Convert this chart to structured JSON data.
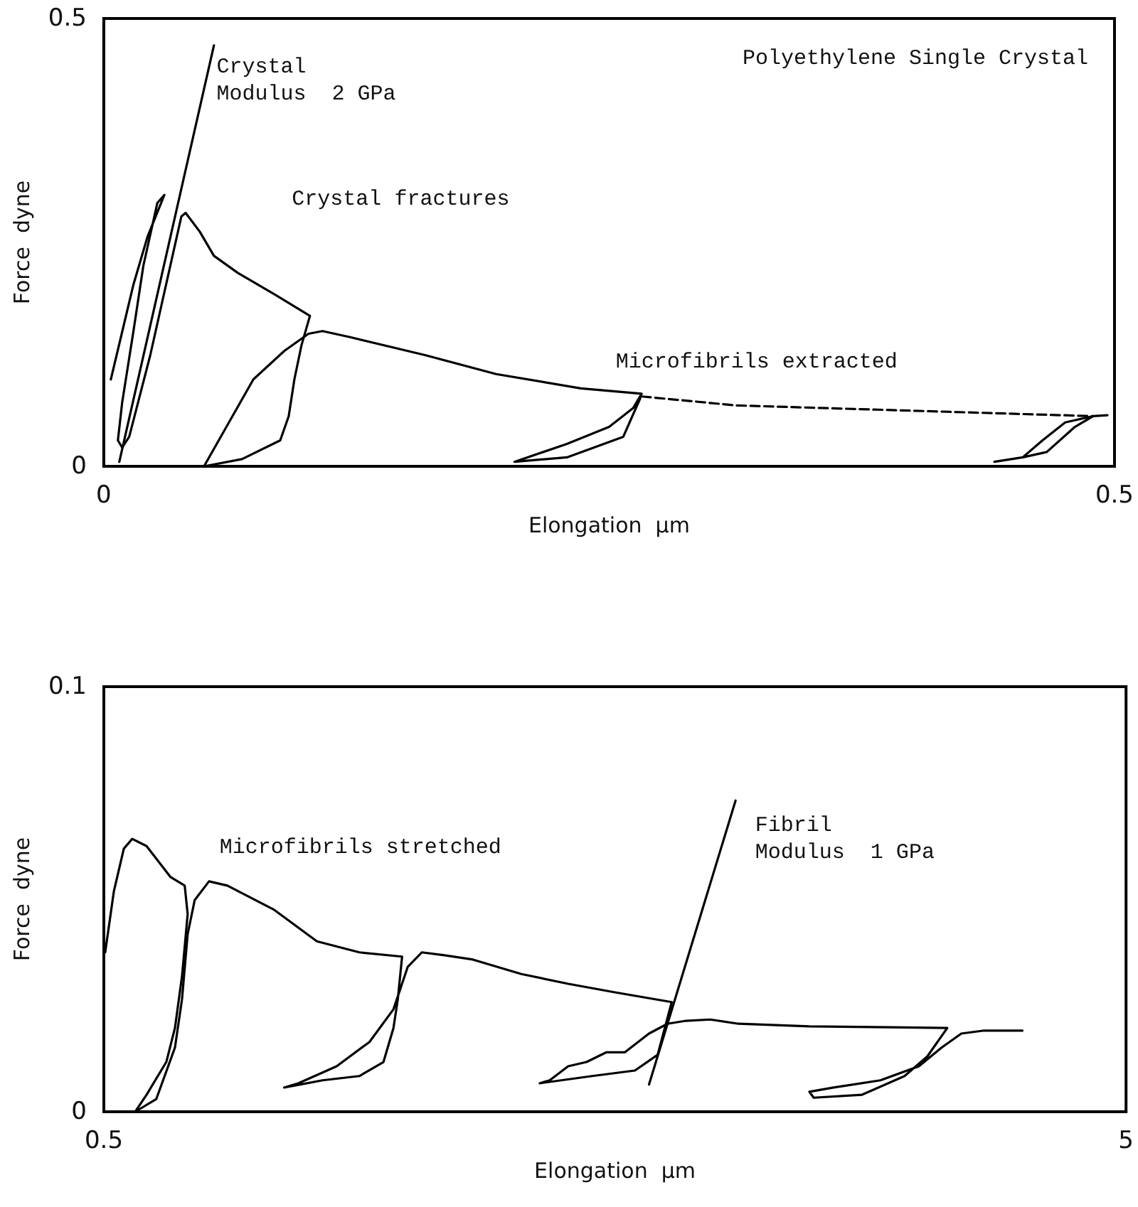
{
  "chart_data": [
    {
      "type": "line",
      "title": "Polyethylene Single Crystal",
      "xlabel": "Elongation  μm",
      "ylabel": "Force  dyne",
      "xlim": [
        0,
        0.5
      ],
      "ylim": [
        0,
        0.5
      ],
      "xticks": [
        0,
        0.5
      ],
      "yticks": [
        0,
        0.5
      ],
      "grid": false,
      "marker": "none",
      "line_style": "solid",
      "annotations": [
        "Crystal\nModulus  2 GPa",
        "Crystal fractures",
        "Microfibrils extracted"
      ],
      "series": [
        {
          "color": "#000000",
          "x": [
            0.0077,
            0.0545
          ],
          "values": [
            0.005,
            0.47
          ]
        },
        {
          "color": "#000000",
          "x": [
            0.0035,
            0.0147,
            0.0216,
            0.03,
            0.0265,
            0.0196,
            0.0147,
            0.0091,
            0.007,
            0.0091,
            0.0126,
            0.023,
            0.0384,
            0.0405,
            0.0475,
            0.0545,
            0.0663,
            0.0845,
            0.102,
            0.0978,
            0.0943,
            0.0915,
            0.0873,
            0.0684,
            0.0496
          ],
          "values": [
            0.097,
            0.203,
            0.256,
            0.303,
            0.294,
            0.224,
            0.151,
            0.071,
            0.029,
            0.021,
            0.033,
            0.124,
            0.279,
            0.283,
            0.262,
            0.235,
            0.216,
            0.192,
            0.168,
            0.135,
            0.097,
            0.056,
            0.029,
            0.008,
            0
          ]
        },
        {
          "color": "#000000",
          "x": [
            0.0496,
            0.074,
            0.0894,
            0.1013,
            0.1082,
            0.1222,
            0.1592,
            0.1941,
            0.236,
            0.2661,
            0.2619,
            0.25,
            0.2291,
            0.2032,
            0.2291,
            0.257,
            0.2654
          ],
          "values": [
            0,
            0.097,
            0.129,
            0.148,
            0.151,
            0.144,
            0.124,
            0.103,
            0.087,
            0.081,
            0.065,
            0.044,
            0.025,
            0.005,
            0.01,
            0.033,
            0.076
          ]
        },
        {
          "color": "#000000",
          "line_style": "dashed",
          "x": [
            0.2661,
            0.3128,
            0.4895
          ],
          "values": [
            0.078,
            0.068,
            0.056
          ]
        },
        {
          "color": "#000000",
          "x": [
            0.4965,
            0.4895,
            0.4756,
            0.4644,
            0.4546,
            0.4406,
            0.4546,
            0.4665,
            0.4804,
            0.4895
          ],
          "values": [
            0.057,
            0.056,
            0.049,
            0.029,
            0.01,
            0.005,
            0.01,
            0.016,
            0.044,
            0.056
          ]
        }
      ]
    },
    {
      "type": "line",
      "xlabel": "Elongation  μm",
      "ylabel": "Force  dyne",
      "xlim": [
        0.5,
        5
      ],
      "ylim": [
        0,
        0.1
      ],
      "xticks": [
        0.5,
        5
      ],
      "yticks": [
        0,
        0.1
      ],
      "grid": false,
      "marker": "none",
      "line_style": "solid",
      "annotations": [
        "Microfibrils stretched",
        "Fibril\nModulus  1 GPa"
      ],
      "series": [
        {
          "color": "#000000",
          "x": [
            0.506,
            0.544,
            0.588,
            0.625,
            0.688,
            0.794,
            0.856,
            0.869,
            0.844,
            0.813,
            0.775,
            0.688,
            0.638
          ],
          "values": [
            0.0375,
            0.0518,
            0.0619,
            0.0642,
            0.0625,
            0.0552,
            0.0532,
            0.0465,
            0.0318,
            0.0197,
            0.0117,
            0.004,
            0
          ]
        },
        {
          "color": "#000000",
          "x": [
            0.638,
            0.731,
            0.813,
            0.844,
            0.869,
            0.9,
            0.963,
            1.044,
            1.25,
            1.438,
            1.625,
            1.813,
            1.794,
            1.775,
            1.731,
            1.625,
            1.463,
            1.294,
            1.356,
            1.525,
            1.669,
            1.775,
            1.838,
            1.9,
            2.0,
            2.125,
            2.338,
            2.544,
            2.75,
            3.0,
            2.938,
            2.838,
            2.65,
            2.419,
            2.463,
            2.544,
            2.625,
            2.713,
            2.794,
            2.9,
            2.981,
            3.063,
            3.169,
            3.294,
            3.606,
            4.213,
            4.125,
            4.025,
            3.838,
            3.625,
            3.606,
            3.713,
            3.919,
            4.088,
            4.188,
            4.275,
            4.375,
            4.544
          ],
          "values": [
            0,
            0.003,
            0.0151,
            0.0264,
            0.0418,
            0.0498,
            0.0542,
            0.0532,
            0.0475,
            0.0401,
            0.0375,
            0.0365,
            0.0264,
            0.0197,
            0.0117,
            0.0084,
            0.0074,
            0.0057,
            0.0067,
            0.0107,
            0.0164,
            0.0241,
            0.0341,
            0.0375,
            0.0368,
            0.0358,
            0.0324,
            0.0301,
            0.0281,
            0.0258,
            0.0134,
            0.0097,
            0.0084,
            0.0067,
            0.0074,
            0.0107,
            0.0117,
            0.014,
            0.014,
            0.0184,
            0.0207,
            0.0214,
            0.0217,
            0.0207,
            0.0201,
            0.0197,
            0.013,
            0.0084,
            0.004,
            0.0033,
            0.0047,
            0.0057,
            0.0074,
            0.0107,
            0.0151,
            0.0184,
            0.0191,
            0.0191
          ]
        },
        {
          "color": "#000000",
          "x": [
            2.9,
            3.281
          ],
          "values": [
            0.0064,
            0.0732
          ]
        }
      ]
    }
  ]
}
